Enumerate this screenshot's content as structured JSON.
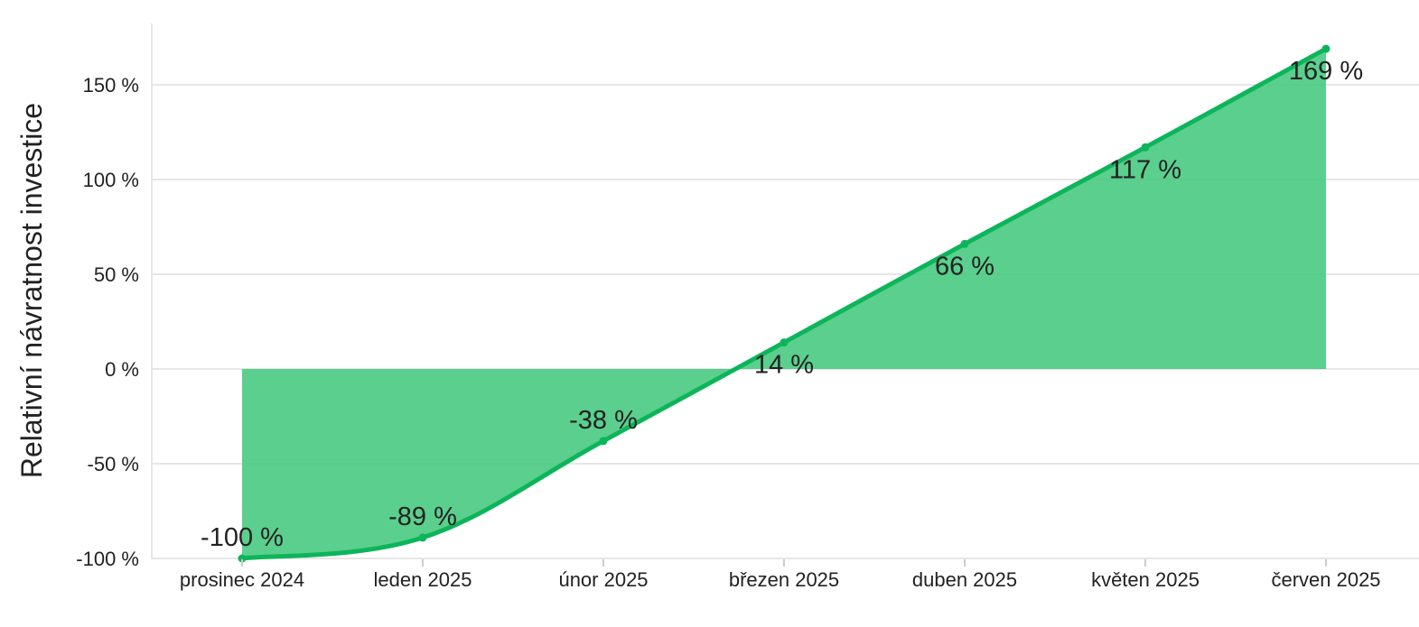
{
  "chart_data": {
    "type": "area",
    "title": "",
    "xlabel": "",
    "ylabel": "Relativní návratnost investice",
    "categories": [
      "prosinec 2024",
      "leden 2025",
      "únor 2025",
      "březen 2025",
      "duben 2025",
      "květen 2025",
      "červen 2025"
    ],
    "series": [
      {
        "values": [
          -100,
          -89,
          -38,
          14,
          66,
          117,
          169
        ]
      }
    ],
    "data_labels": [
      "-100 %",
      "-89 %",
      "-38 %",
      "14 %",
      "66 %",
      "117 %",
      "169 %"
    ],
    "y_ticks": [
      -100,
      -50,
      0,
      50,
      100,
      150
    ],
    "y_tick_labels": [
      "-100 %",
      "-50 %",
      "0 %",
      "50 %",
      "100 %",
      "150 %"
    ],
    "ylim": [
      -100,
      180
    ],
    "grid": true,
    "legend": "none",
    "colors": {
      "line": "#0db55a",
      "fill": "#3ec77a",
      "grid": "#e6e6e6",
      "text": "#222222"
    }
  }
}
